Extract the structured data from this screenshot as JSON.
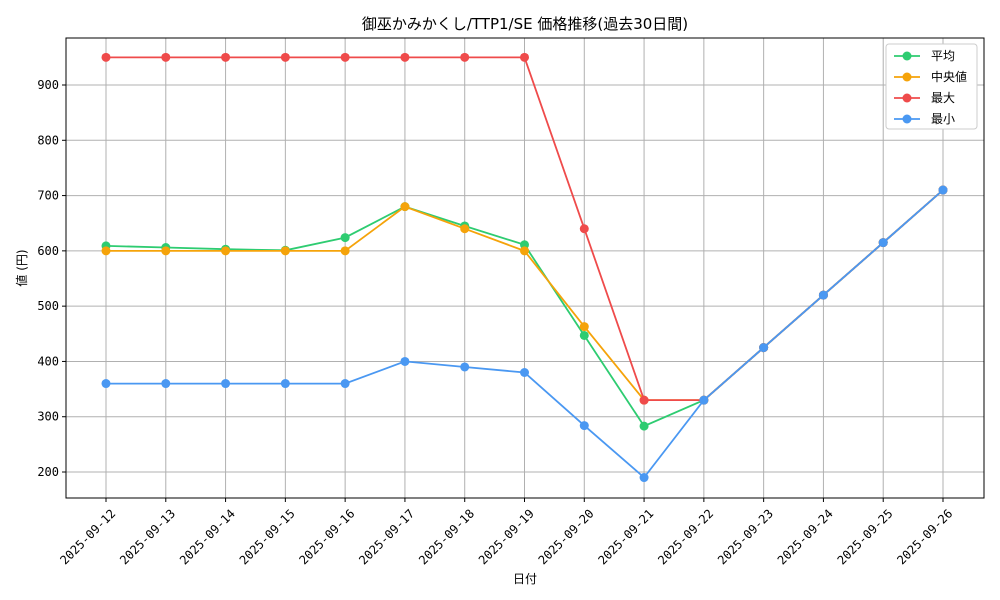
{
  "chart_data": {
    "type": "line",
    "title": "御巫かみかくし/TTP1/SE 価格推移(過去30日間)",
    "xlabel": "日付",
    "ylabel": "値 (円)",
    "categories": [
      "2025-09-12",
      "2025-09-13",
      "2025-09-14",
      "2025-09-15",
      "2025-09-16",
      "2025-09-17",
      "2025-09-18",
      "2025-09-19",
      "2025-09-20",
      "2025-09-21",
      "2025-09-22",
      "2025-09-23",
      "2025-09-24",
      "2025-09-25",
      "2025-09-26"
    ],
    "ylim": [
      153,
      985
    ],
    "yticks": [
      200,
      300,
      400,
      500,
      600,
      700,
      800,
      900
    ],
    "grid": true,
    "legend_position": "top-right",
    "series": [
      {
        "name": "平均",
        "color": "#2ecc71",
        "values": [
          609,
          606,
          603,
          601,
          624,
          680,
          645,
          611,
          447,
          283,
          330,
          425,
          520,
          615,
          710
        ]
      },
      {
        "name": "中央値",
        "color": "#f5a30a",
        "values": [
          600,
          600,
          600,
          600,
          600,
          680,
          640,
          600,
          463,
          330,
          330,
          425,
          520,
          615,
          710
        ]
      },
      {
        "name": "最大",
        "color": "#ef4b4b",
        "values": [
          950,
          950,
          950,
          950,
          950,
          950,
          950,
          950,
          640,
          330,
          330,
          425,
          520,
          615,
          710
        ]
      },
      {
        "name": "最小",
        "color": "#4a98f2",
        "values": [
          360,
          360,
          360,
          360,
          360,
          400,
          390,
          380,
          284,
          190,
          330,
          425,
          520,
          615,
          710
        ]
      }
    ]
  }
}
